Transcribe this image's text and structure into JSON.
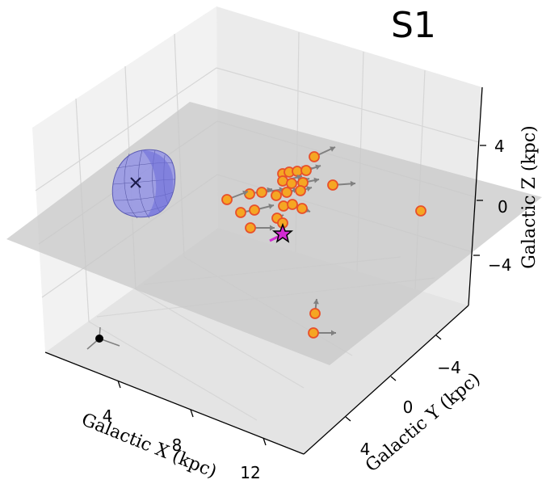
{
  "chart_data": {
    "type": "scatter-3d",
    "title": "S1",
    "xlabel": "Galactic X (kpc)",
    "ylabel": "Galactic Y (kpc)",
    "zlabel": "Galactic Z (kpc)",
    "x_ticks": [
      "4",
      "8",
      "12"
    ],
    "y_ticks": [
      "−4",
      "0",
      "4"
    ],
    "z_ticks": [
      "4",
      "0",
      "−4"
    ],
    "grid": true,
    "colors": {
      "point_fill": "#f5a623",
      "point_edge": "#e8502a",
      "arrow": "#808080",
      "ellipsoid": "#8c8ce8",
      "plane": "#c8c8c8",
      "sun_marker": "#d22bd2"
    },
    "markers": {
      "ellipsoid_center": "x-icon",
      "star": "star-icon",
      "origin": "dot-icon"
    }
  }
}
